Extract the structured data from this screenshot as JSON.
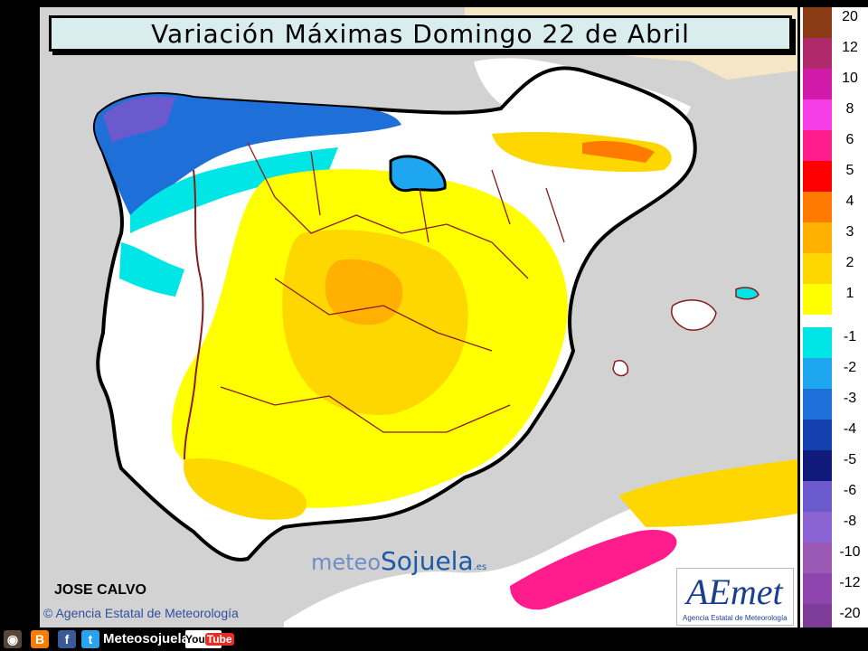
{
  "title": "Variación Máximas  Domingo 22 de Abril",
  "author": "JOSE CALVO",
  "copyright": "Agencia Estatal de Meteorología",
  "watermark": {
    "part1": "meteo",
    "part2": "Sojuela",
    "suffix": ".es"
  },
  "aemet_logo": {
    "text": "AEmet",
    "subtitle": "Agencia Estatal de Meteorología"
  },
  "social": {
    "name": "Meteosojuela",
    "youtube": "YouTube",
    "icons": [
      "instagram-icon",
      "blogger-icon",
      "facebook-icon",
      "twitter-icon",
      "youtube-icon"
    ]
  },
  "legend": {
    "positive": [
      {
        "label": "20",
        "color": "#8a3b14"
      },
      {
        "label": "12",
        "color": "#b02a6b"
      },
      {
        "label": "10",
        "color": "#d21aa8"
      },
      {
        "label": "8",
        "color": "#f53ee6"
      },
      {
        "label": "6",
        "color": "#ff1c8c"
      },
      {
        "label": "5",
        "color": "#ff0000"
      },
      {
        "label": "4",
        "color": "#ff7a00"
      },
      {
        "label": "3",
        "color": "#ffb000"
      },
      {
        "label": "2",
        "color": "#ffd700"
      },
      {
        "label": "1",
        "color": "#ffff00"
      }
    ],
    "negative": [
      {
        "label": "-1",
        "color": "#00e5e5"
      },
      {
        "label": "-2",
        "color": "#1ea7f0"
      },
      {
        "label": "-3",
        "color": "#1e6fd8"
      },
      {
        "label": "-4",
        "color": "#1440b0"
      },
      {
        "label": "-5",
        "color": "#101a7a"
      },
      {
        "label": "-6",
        "color": "#6a5acd"
      },
      {
        "label": "-8",
        "color": "#8a63d2"
      },
      {
        "label": "-10",
        "color": "#9b59b6"
      },
      {
        "label": "-12",
        "color": "#8e44ad"
      },
      {
        "label": "-20",
        "color": "#7d3c98"
      }
    ]
  }
}
